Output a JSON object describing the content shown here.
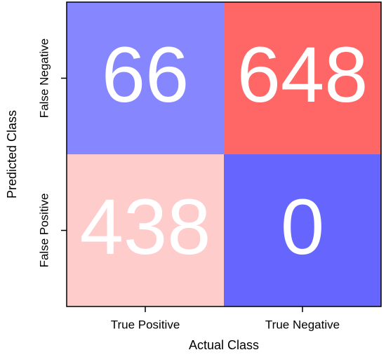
{
  "chart_data": {
    "type": "heatmap",
    "xlabel": "Actual Class",
    "ylabel": "Predicted Class",
    "x_categories": [
      "True Positive",
      "True Negative"
    ],
    "y_categories": [
      "False Negative",
      "False Positive"
    ],
    "values": [
      [
        66,
        648
      ],
      [
        438,
        0
      ]
    ],
    "colors": [
      [
        "#8686ff",
        "#ff6666"
      ],
      [
        "#ffcccc",
        "#6666ff"
      ]
    ]
  }
}
